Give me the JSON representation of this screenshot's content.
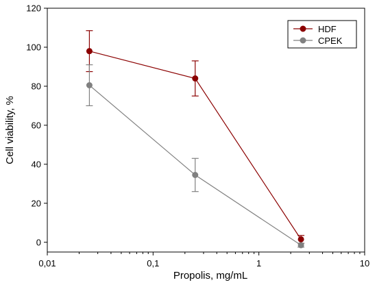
{
  "chart_data": {
    "type": "line",
    "xscale": "log",
    "xlabel": "Propolis, mg/mL",
    "ylabel": "Cell viability, %",
    "xlim": [
      0.01,
      10
    ],
    "ylim": [
      -5,
      120
    ],
    "x_ticks": [
      0.01,
      0.1,
      1,
      10
    ],
    "x_tick_labels": [
      "0,01",
      "0,1",
      "1",
      "10"
    ],
    "y_ticks": [
      0,
      20,
      40,
      60,
      80,
      100,
      120
    ],
    "y_tick_labels": [
      "0",
      "20",
      "40",
      "60",
      "80",
      "100",
      "120"
    ],
    "grid": false,
    "legend_position": "top-right",
    "series": [
      {
        "name": "HDF",
        "color": "#8b0000",
        "x": [
          0.025,
          0.25,
          2.5
        ],
        "y": [
          98,
          84,
          1.5
        ],
        "error": [
          10.5,
          9,
          2
        ]
      },
      {
        "name": "CPEK",
        "color": "#808080",
        "x": [
          0.025,
          0.25,
          2.5
        ],
        "y": [
          80.5,
          34.5,
          -1.5
        ],
        "error": [
          10.5,
          8.5,
          1
        ]
      }
    ]
  }
}
